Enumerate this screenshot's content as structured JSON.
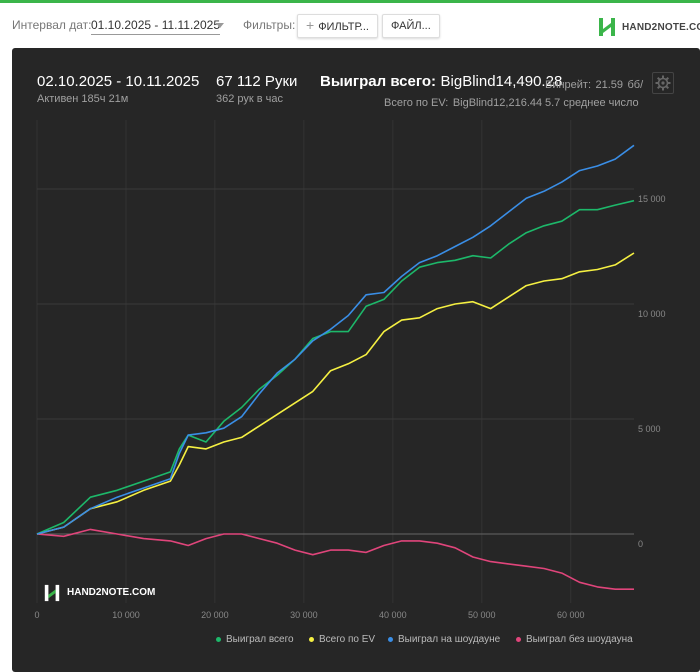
{
  "toolbar": {
    "interval_label": "Интервал дат:",
    "date_range": "01.10.2025 - 11.11.2025",
    "filters_label": "Фильтры:",
    "filters_button": "ФИЛЬТР...",
    "files_button": "ФАЙЛ...",
    "logo_text": "HAND2NOTE.COM"
  },
  "summary": {
    "period": "02.10.2025 - 10.11.2025",
    "active": "Активен 185ч 21м",
    "hands": "67 112 Руки",
    "hands_per_hour": "362 рук в час",
    "won_total_label": "Выиграл всего:",
    "won_total_value": "BigBlind14,490.28",
    "ev_label": "Всего по EV:",
    "ev_value": "BigBlind12,216.44",
    "winrate_label": "Винрейт:",
    "winrate_value": "21.59",
    "winrate_unit": "бб/",
    "std_text": "5.7 среднее число"
  },
  "watermark": "HAND2NOTE.COM",
  "colors": {
    "won_total": "#1db86a",
    "ev": "#f5f042",
    "showdown": "#3a8ee6",
    "non_showdown": "#e0457b"
  },
  "chart_data": {
    "type": "line",
    "xlim": [
      0,
      67112
    ],
    "ylim": [
      -3000,
      18000
    ],
    "x_ticks": [
      0,
      10000,
      20000,
      30000,
      40000,
      50000,
      60000
    ],
    "x_tick_labels": [
      "0",
      "10 000",
      "20 000",
      "30 000",
      "40 000",
      "50 000",
      "60 000"
    ],
    "y_ticks": [
      0,
      5000,
      10000,
      15000
    ],
    "y_tick_labels": [
      "0",
      "5 000",
      "10 000",
      "15 000"
    ],
    "grid": true,
    "legend_position": "bottom-right",
    "series": [
      {
        "name": "Выиграл всего",
        "color": "#1db86a",
        "x": [
          0,
          3000,
          6000,
          9000,
          12000,
          15000,
          16000,
          17000,
          19000,
          21000,
          23000,
          25000,
          27000,
          29000,
          31000,
          33000,
          35000,
          37000,
          39000,
          41000,
          43000,
          45000,
          47000,
          49000,
          51000,
          53000,
          55000,
          57000,
          59000,
          61000,
          63000,
          65000,
          67112
        ],
        "y": [
          0,
          500,
          1600,
          1900,
          2300,
          2700,
          3700,
          4300,
          4000,
          4900,
          5500,
          6300,
          6900,
          7600,
          8500,
          8800,
          8800,
          9900,
          10200,
          11000,
          11600,
          11800,
          11900,
          12100,
          12000,
          12600,
          13100,
          13400,
          13600,
          14100,
          14100,
          14300,
          14490
        ]
      },
      {
        "name": "Всего по EV",
        "color": "#f5f042",
        "x": [
          0,
          3000,
          6000,
          9000,
          12000,
          15000,
          16000,
          17000,
          19000,
          21000,
          23000,
          25000,
          27000,
          29000,
          31000,
          33000,
          35000,
          37000,
          39000,
          41000,
          43000,
          45000,
          47000,
          49000,
          51000,
          53000,
          55000,
          57000,
          59000,
          61000,
          63000,
          65000,
          67112
        ],
        "y": [
          0,
          300,
          1100,
          1400,
          1900,
          2300,
          3000,
          3800,
          3700,
          4000,
          4200,
          4700,
          5200,
          5700,
          6200,
          7100,
          7400,
          7800,
          8800,
          9300,
          9400,
          9800,
          10000,
          10100,
          9800,
          10300,
          10800,
          11000,
          11100,
          11400,
          11500,
          11700,
          12216
        ]
      },
      {
        "name": "Выиграл на шоудауне",
        "color": "#3a8ee6",
        "x": [
          0,
          3000,
          6000,
          9000,
          12000,
          15000,
          16000,
          17000,
          19000,
          21000,
          23000,
          25000,
          27000,
          29000,
          31000,
          33000,
          35000,
          37000,
          39000,
          41000,
          43000,
          45000,
          47000,
          49000,
          51000,
          53000,
          55000,
          57000,
          59000,
          61000,
          63000,
          65000,
          67112
        ],
        "y": [
          0,
          300,
          1100,
          1600,
          2000,
          2400,
          3500,
          4300,
          4400,
          4600,
          5100,
          6100,
          7000,
          7600,
          8400,
          8900,
          9500,
          10400,
          10500,
          11200,
          11800,
          12100,
          12500,
          12900,
          13400,
          14000,
          14600,
          14900,
          15300,
          15800,
          16000,
          16300,
          16900
        ]
      },
      {
        "name": "Выиграл без шоудауна",
        "color": "#e0457b",
        "x": [
          0,
          3000,
          6000,
          9000,
          12000,
          15000,
          16000,
          17000,
          19000,
          21000,
          23000,
          25000,
          27000,
          29000,
          31000,
          33000,
          35000,
          37000,
          39000,
          41000,
          43000,
          45000,
          47000,
          49000,
          51000,
          53000,
          55000,
          57000,
          59000,
          61000,
          63000,
          65000,
          67112
        ],
        "y": [
          0,
          -100,
          200,
          0,
          -200,
          -300,
          -400,
          -500,
          -200,
          0,
          0,
          -200,
          -400,
          -700,
          -900,
          -700,
          -700,
          -800,
          -500,
          -300,
          -300,
          -400,
          -600,
          -1000,
          -1200,
          -1300,
          -1400,
          -1500,
          -1700,
          -2100,
          -2300,
          -2400,
          -2400
        ]
      }
    ]
  }
}
